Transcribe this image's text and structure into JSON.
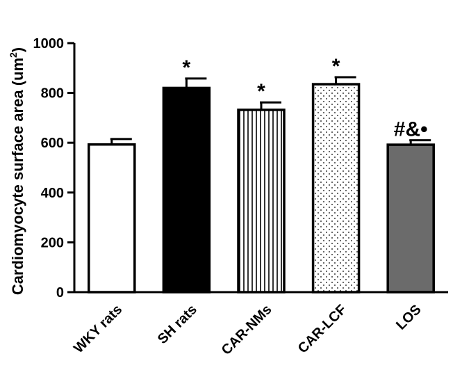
{
  "chart_data": {
    "type": "bar",
    "title": "",
    "xlabel": "",
    "ylabel": "Cardiomyocyte surface area (um",
    "ylabel_superscript": "2",
    "ylabel_suffix": ")",
    "ylim": [
      0,
      1000
    ],
    "yticks": [
      0,
      200,
      400,
      600,
      800,
      1000
    ],
    "grid": false,
    "categories": [
      "WKY rats",
      "SH rats",
      "CAR-NMs",
      "CAR-LCF",
      "LOS"
    ],
    "values": [
      593,
      820,
      732,
      835,
      592
    ],
    "errors": [
      22,
      38,
      30,
      28,
      18
    ],
    "annotations": [
      "",
      "*",
      "*",
      "*",
      "#&•"
    ],
    "fills": [
      "white",
      "black",
      "vertical-stripes",
      "dots",
      "gray"
    ],
    "colors": {
      "black": "#000000",
      "gray": "#6b6b6b",
      "white": "#ffffff"
    }
  }
}
